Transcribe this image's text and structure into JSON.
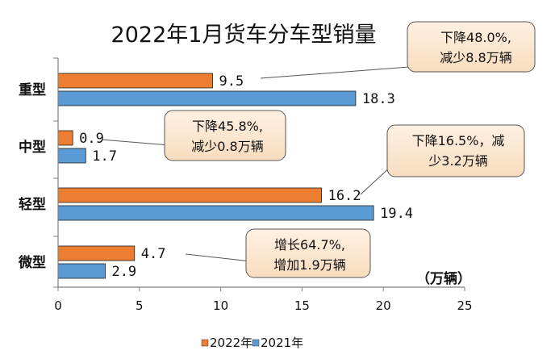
{
  "chart_data": {
    "type": "bar",
    "orientation": "horizontal",
    "title": "2022年1月货车分车型销量",
    "categories": [
      "重型",
      "中型",
      "轻型",
      "微型"
    ],
    "series": [
      {
        "name": "2022年",
        "color": "#ED7D31",
        "values": [
          9.5,
          0.9,
          16.2,
          4.7
        ],
        "labels": [
          "9.5",
          "0.9",
          "16.2",
          "4.7"
        ]
      },
      {
        "name": "2021年",
        "color": "#5B9BD5",
        "values": [
          18.3,
          1.7,
          19.4,
          2.9
        ],
        "labels": [
          "18.3",
          "1.7",
          "19.4",
          "2.9"
        ]
      }
    ],
    "xlim": [
      0,
      25
    ],
    "xticks": [
      "0",
      "5",
      "10",
      "15",
      "20",
      "25"
    ],
    "unit": "（万辆）",
    "legend_position": "bottom-center",
    "annotations": [
      {
        "lines": [
          "下降48.0%,",
          "减少8.8万辆"
        ]
      },
      {
        "lines": [
          "下降45.8%,",
          "减少0.8万辆"
        ]
      },
      {
        "lines": [
          "下降16.5%，减",
          "少3.2万辆"
        ]
      },
      {
        "lines": [
          "增长64.7%,",
          "增加1.9万辆"
        ]
      }
    ]
  }
}
